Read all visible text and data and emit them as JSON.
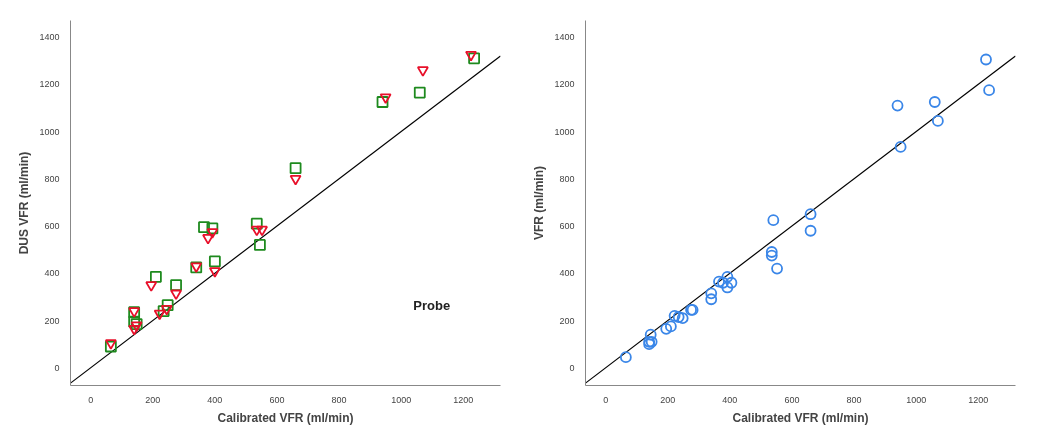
{
  "chart_data": [
    {
      "type": "scatter",
      "xlabel": "Calibrated VFR (ml/min)",
      "ylabel": "DUS VFR (ml/min)",
      "annotations": [
        "Probe"
      ],
      "grid": false,
      "xlim": [
        -65,
        1320
      ],
      "ylim": [
        -75,
        1470
      ],
      "xticks": [
        0,
        200,
        400,
        600,
        800,
        1000,
        1200
      ],
      "yticks": [
        0,
        200,
        400,
        600,
        800,
        1000,
        1200,
        1400
      ],
      "series": [
        {
          "type": "line",
          "color": "#000000",
          "marker": "none",
          "x": [
            -65,
            1320
          ],
          "values": [
            -65,
            1320
          ]
        },
        {
          "type": "scatter",
          "color": "#1e8a1e",
          "marker": "square",
          "x": [
            65,
            140,
            140,
            148,
            210,
            235,
            248,
            275,
            340,
            365,
            392,
            400,
            535,
            545,
            660,
            940,
            1060,
            1235
          ],
          "values": [
            90,
            235,
            195,
            185,
            385,
            240,
            265,
            350,
            425,
            595,
            590,
            450,
            610,
            520,
            845,
            1125,
            1165,
            1310
          ]
        },
        {
          "type": "scatter",
          "color": "#e8102a",
          "marker": "triangle",
          "x": [
            65,
            140,
            140,
            148,
            195,
            222,
            245,
            275,
            340,
            378,
            392,
            400,
            535,
            552,
            660,
            950,
            1070,
            1225
          ],
          "values": [
            105,
            240,
            165,
            180,
            350,
            230,
            250,
            315,
            430,
            550,
            575,
            410,
            585,
            585,
            800,
            1145,
            1260,
            1325
          ]
        }
      ]
    },
    {
      "type": "scatter",
      "xlabel": "Calibrated VFR (ml/min)",
      "ylabel": "VFR (ml/min)",
      "legend": false,
      "grid": false,
      "xlim": [
        -65,
        1320
      ],
      "ylim": [
        -75,
        1470
      ],
      "xticks": [
        0,
        200,
        400,
        600,
        800,
        1000,
        1200
      ],
      "yticks": [
        0,
        200,
        400,
        600,
        800,
        1000,
        1200,
        1400
      ],
      "series": [
        {
          "type": "line",
          "color": "#000000",
          "marker": "none",
          "x": [
            -65,
            1320
          ],
          "values": [
            -65,
            1320
          ]
        },
        {
          "type": "scatter",
          "color": "#3a86e8",
          "marker": "circle",
          "x": [
            65,
            140,
            140,
            145,
            148,
            195,
            210,
            222,
            235,
            248,
            275,
            280,
            340,
            340,
            365,
            378,
            392,
            392,
            405,
            535,
            535,
            540,
            552,
            660,
            660,
            940,
            950,
            1060,
            1070,
            1225,
            1235
          ],
          "values": [
            45,
            110,
            100,
            140,
            110,
            165,
            175,
            220,
            215,
            210,
            245,
            245,
            315,
            290,
            365,
            360,
            385,
            340,
            360,
            490,
            475,
            625,
            420,
            650,
            580,
            1110,
            935,
            1125,
            1045,
            1305,
            1175
          ]
        }
      ]
    }
  ]
}
